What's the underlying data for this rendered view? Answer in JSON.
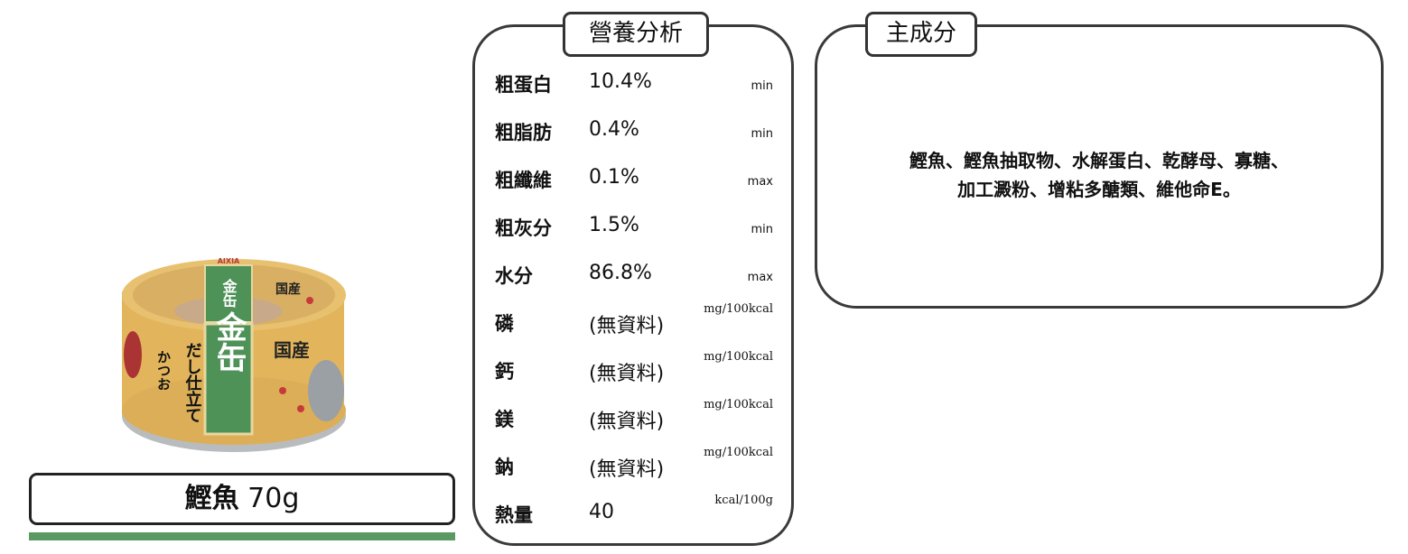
{
  "product": {
    "name": "鰹魚",
    "weight": "70g",
    "image_logo_text": [
      "金缶",
      "だし仕立て",
      "かつお",
      "国産",
      "AIXIA"
    ],
    "accent_color": "#5a9a62"
  },
  "nutrition": {
    "title": "營養分析",
    "rows": [
      {
        "label": "粗蛋白",
        "value": "10.4%",
        "unit": "min"
      },
      {
        "label": "粗脂肪",
        "value": "0.4%",
        "unit": "min"
      },
      {
        "label": "粗纖維",
        "value": "0.1%",
        "unit": "max"
      },
      {
        "label": "粗灰分",
        "value": "1.5%",
        "unit": "min"
      },
      {
        "label": "水分",
        "value": "86.8%",
        "unit": "max"
      },
      {
        "label": "磷",
        "value": "(無資料)",
        "unit": "mg/100kcal"
      },
      {
        "label": "鈣",
        "value": "(無資料)",
        "unit": "mg/100kcal"
      },
      {
        "label": "鎂",
        "value": "(無資料)",
        "unit": "mg/100kcal"
      },
      {
        "label": "鈉",
        "value": "(無資料)",
        "unit": "mg/100kcal"
      },
      {
        "label": "熱量",
        "value": "40",
        "unit": "kcal/100g"
      }
    ]
  },
  "ingredients": {
    "title": "主成分",
    "line1": "鰹魚、鰹魚抽取物、水解蛋白、乾酵母、寡糖、",
    "line2": "加工澱粉、增粘多醣類、維他命E。"
  }
}
